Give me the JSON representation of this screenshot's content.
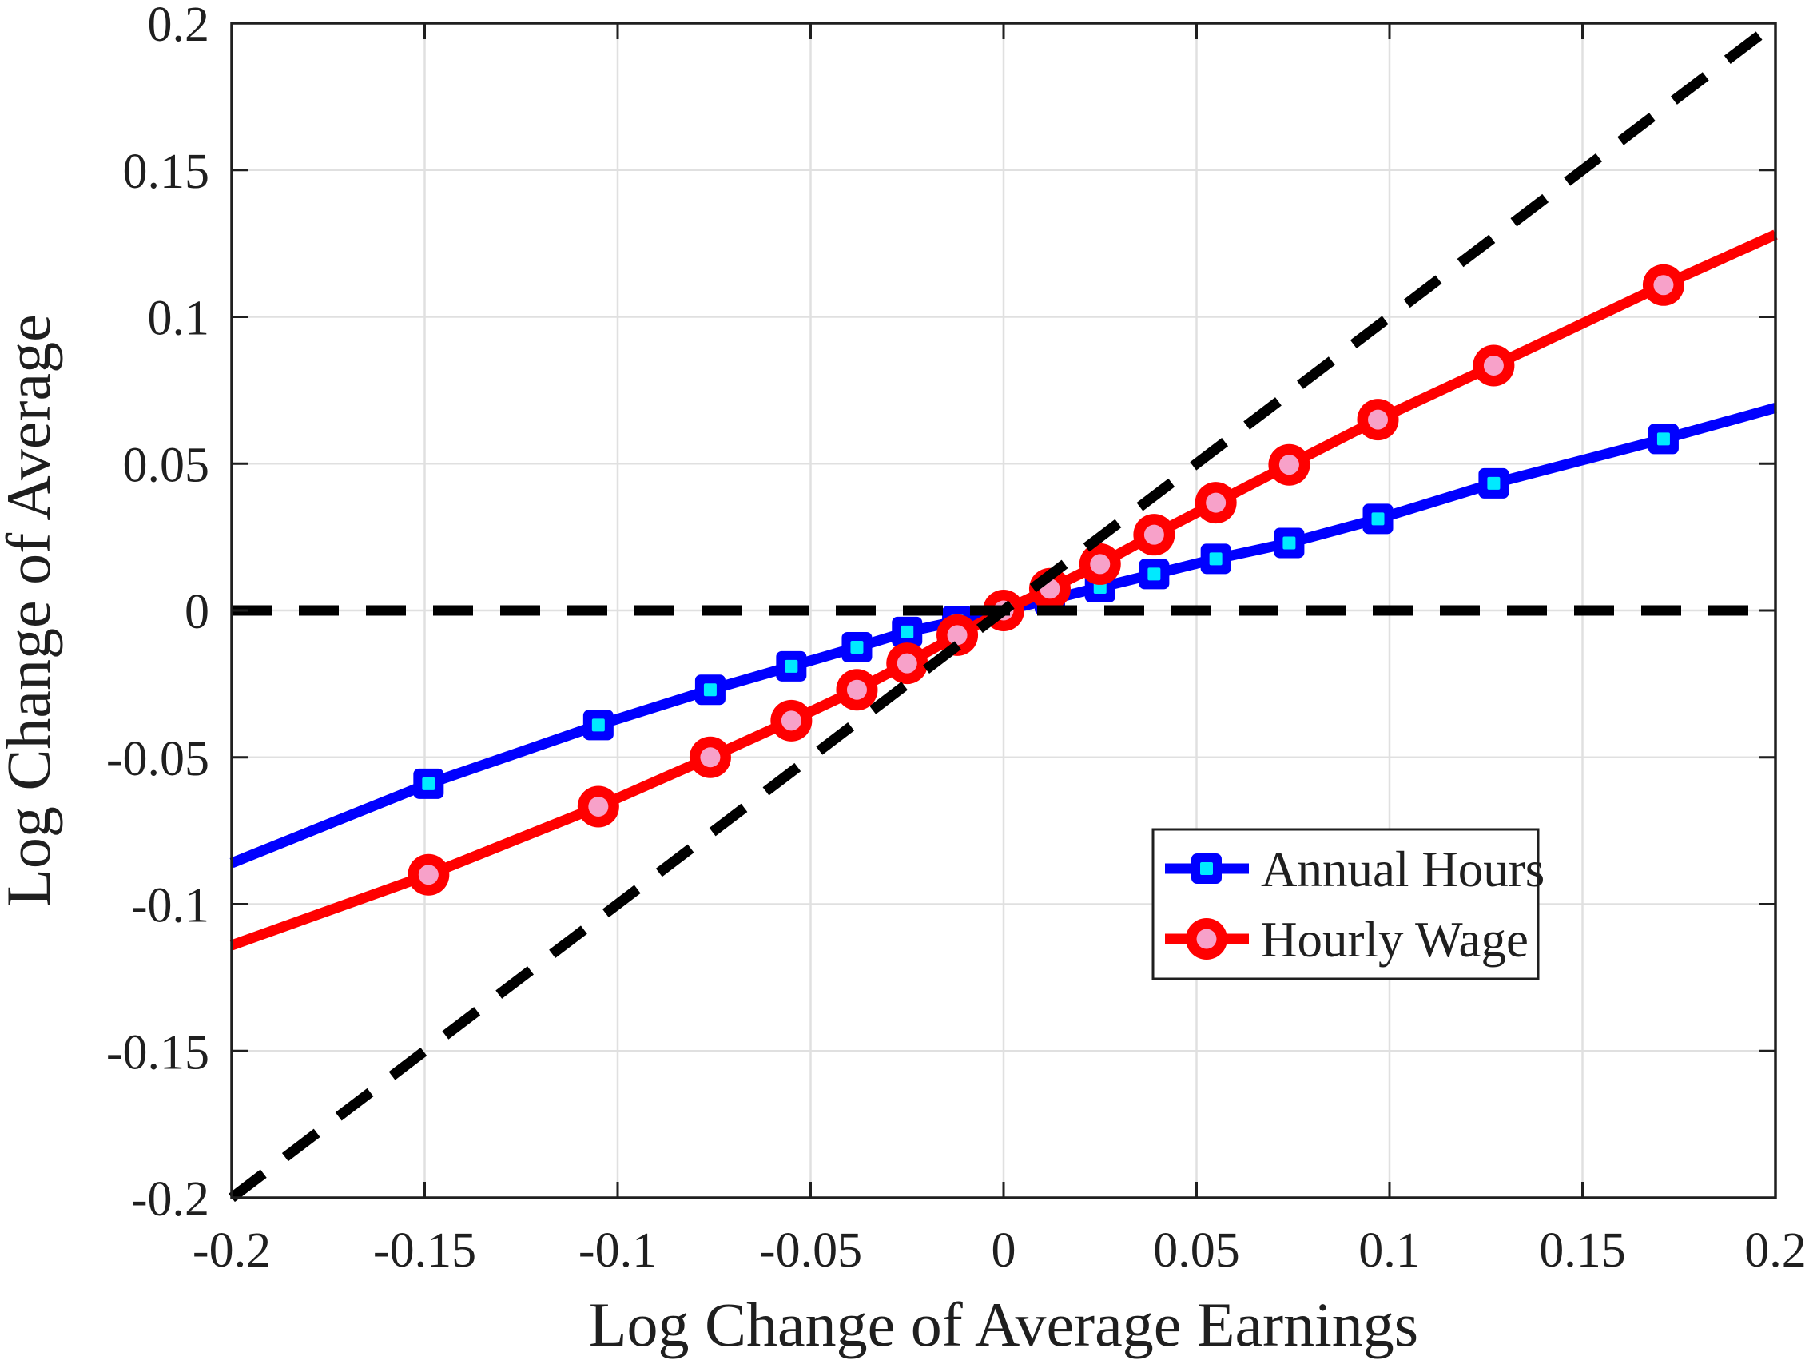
{
  "chart_data": {
    "type": "line",
    "title": "",
    "xlabel": "Log Change of Average Earnings",
    "ylabel": "Log Change of Average",
    "xlim": [
      -0.2,
      0.2
    ],
    "ylim": [
      -0.2,
      0.2
    ],
    "grid": true,
    "xticks": [
      -0.2,
      -0.15,
      -0.1,
      -0.05,
      0,
      0.05,
      0.1,
      0.15,
      0.2
    ],
    "xtick_labels": [
      "-0.2",
      "-0.15",
      "-0.1",
      "-0.05",
      "0",
      "0.05",
      "0.1",
      "0.15",
      "0.2"
    ],
    "yticks": [
      -0.2,
      -0.15,
      -0.1,
      -0.05,
      0,
      0.05,
      0.1,
      0.15,
      0.2
    ],
    "ytick_labels": [
      "-0.2",
      "-0.15",
      "-0.1",
      "-0.05",
      "0",
      "0.05",
      "0.1",
      "0.15",
      "0.2"
    ],
    "x": [
      -0.2,
      -0.149,
      -0.105,
      -0.076,
      -0.055,
      -0.038,
      -0.025,
      -0.012,
      0,
      0.012,
      0.025,
      0.039,
      0.055,
      0.074,
      0.097,
      0.127,
      0.171,
      0.2
    ],
    "series": [
      {
        "name": "Annual Hours",
        "color": "#0000ff",
        "marker": "square",
        "marker_fill": "#00eaff",
        "values": [
          -0.086,
          -0.059,
          -0.039,
          -0.027,
          -0.019,
          -0.0125,
          -0.0073,
          -0.0036,
          0,
          0.0037,
          0.0079,
          0.0124,
          0.0176,
          0.023,
          0.0312,
          0.0433,
          0.0584,
          0.069
        ]
      },
      {
        "name": "Hourly Wage",
        "color": "#ff0000",
        "marker": "circle",
        "marker_fill": "#f7a1c9",
        "values": [
          -0.114,
          -0.09,
          -0.0668,
          -0.05,
          -0.0375,
          -0.027,
          -0.018,
          -0.0084,
          0,
          0.0074,
          0.0158,
          0.0258,
          0.0367,
          0.0496,
          0.065,
          0.0834,
          0.1108,
          0.128
        ]
      }
    ],
    "reference_lines": [
      {
        "name": "45-degree-line",
        "style": "dashed",
        "color": "#000000",
        "from": [
          -0.2,
          -0.2
        ],
        "to": [
          0.2,
          0.2
        ]
      },
      {
        "name": "zero-line",
        "style": "dashed",
        "color": "#000000",
        "from": [
          -0.2,
          0
        ],
        "to": [
          0.2,
          0
        ]
      }
    ],
    "legend": {
      "position": "lower-right",
      "entries": [
        "Annual Hours",
        "Hourly Wage"
      ]
    },
    "colors": {
      "axis": "#1f1f1f",
      "grid": "#e0e0e0",
      "background": "#ffffff",
      "legend_border": "#1f1f1f"
    }
  }
}
